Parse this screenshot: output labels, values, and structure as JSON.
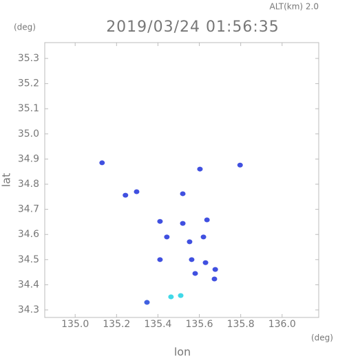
{
  "chart_data": {
    "type": "scatter",
    "title": "2019/03/24 01:56:35",
    "subtitle": "ALT(km) 2.0",
    "y_unit": "(deg)",
    "x_unit": "(deg)",
    "xlabel": "lon",
    "ylabel": "lat",
    "x": [
      135.13,
      135.243,
      135.297,
      135.52,
      135.603,
      135.797,
      135.41,
      135.52,
      135.637,
      135.443,
      135.553,
      135.62,
      135.563,
      135.63,
      135.41,
      135.58,
      135.677,
      135.673,
      135.347,
      135.463,
      135.51
    ],
    "values": [
      34.885,
      34.756,
      34.77,
      34.762,
      34.86,
      34.876,
      34.652,
      34.644,
      34.658,
      34.59,
      34.571,
      34.59,
      34.5,
      34.488,
      34.5,
      34.445,
      34.461,
      34.423,
      34.33,
      34.352,
      34.357
    ],
    "colors": [
      "#4050e0",
      "#4050e0",
      "#4050e0",
      "#4050e0",
      "#4050e0",
      "#4050e0",
      "#4050e0",
      "#4050e0",
      "#4050e0",
      "#4050e0",
      "#4050e0",
      "#4050e0",
      "#4050e0",
      "#4050e0",
      "#4050e0",
      "#4050e0",
      "#4050e0",
      "#4050e0",
      "#4060e0",
      "#40d8e8",
      "#40d8e8"
    ],
    "xlim": [
      134.853,
      136.177
    ],
    "ylim": [
      34.27,
      35.363
    ],
    "xticks": [
      {
        "value": 135,
        "label": "135.0"
      },
      135.2,
      135.4,
      135.6,
      135.8,
      {
        "value": 136,
        "label": "136.0"
      }
    ],
    "yticks": [
      35.3,
      35.2,
      35.1,
      {
        "value": 35,
        "label": "35.0"
      },
      34.9,
      34.8,
      34.7,
      34.6,
      34.5,
      34.4,
      34.3
    ]
  }
}
